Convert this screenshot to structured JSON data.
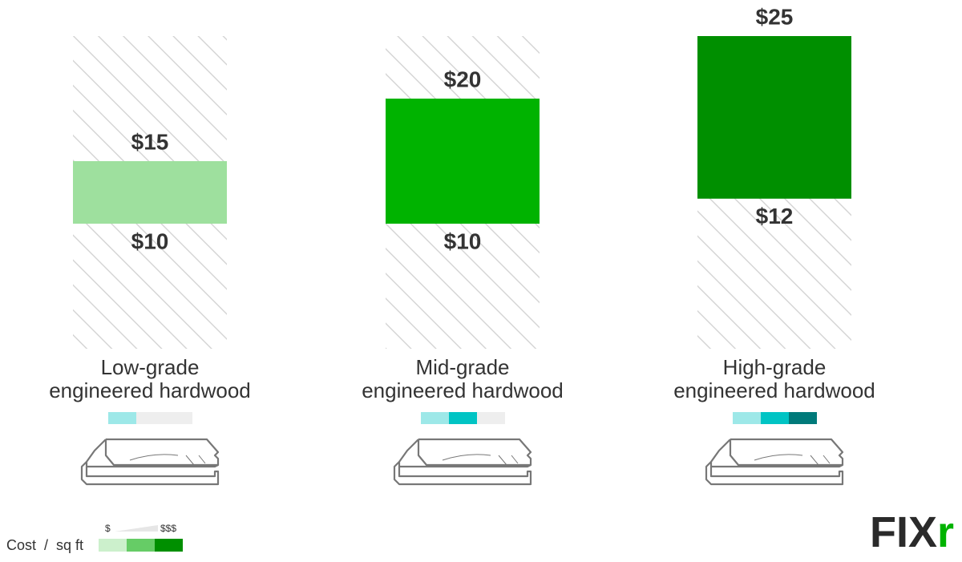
{
  "chart_data": {
    "type": "range-bar",
    "categories": [
      "Low-grade\nengineered hardwood",
      "Mid-grade\nengineered hardwood",
      "High-grade\nengineered hardwood"
    ],
    "low": [
      10,
      10,
      12
    ],
    "high": [
      15,
      20,
      25
    ],
    "low_labels": [
      "$10",
      "$10",
      "$12"
    ],
    "high_labels": [
      "$15",
      "$20",
      "$25"
    ],
    "colors": [
      "#9ee09e",
      "#00b300",
      "#008f00"
    ],
    "ylim": [
      0,
      25
    ],
    "cost_levels": [
      1,
      2,
      3
    ],
    "cost_colors": [
      "#9de8e8",
      "#00c4c4",
      "#007a7a"
    ],
    "legend": {
      "title": "Cost  /  sq ft",
      "low": "$",
      "high": "$$$",
      "colors": [
        "#ccf0cc",
        "#66cc66",
        "#008f00"
      ]
    },
    "logo": [
      "FIX",
      "r"
    ]
  }
}
